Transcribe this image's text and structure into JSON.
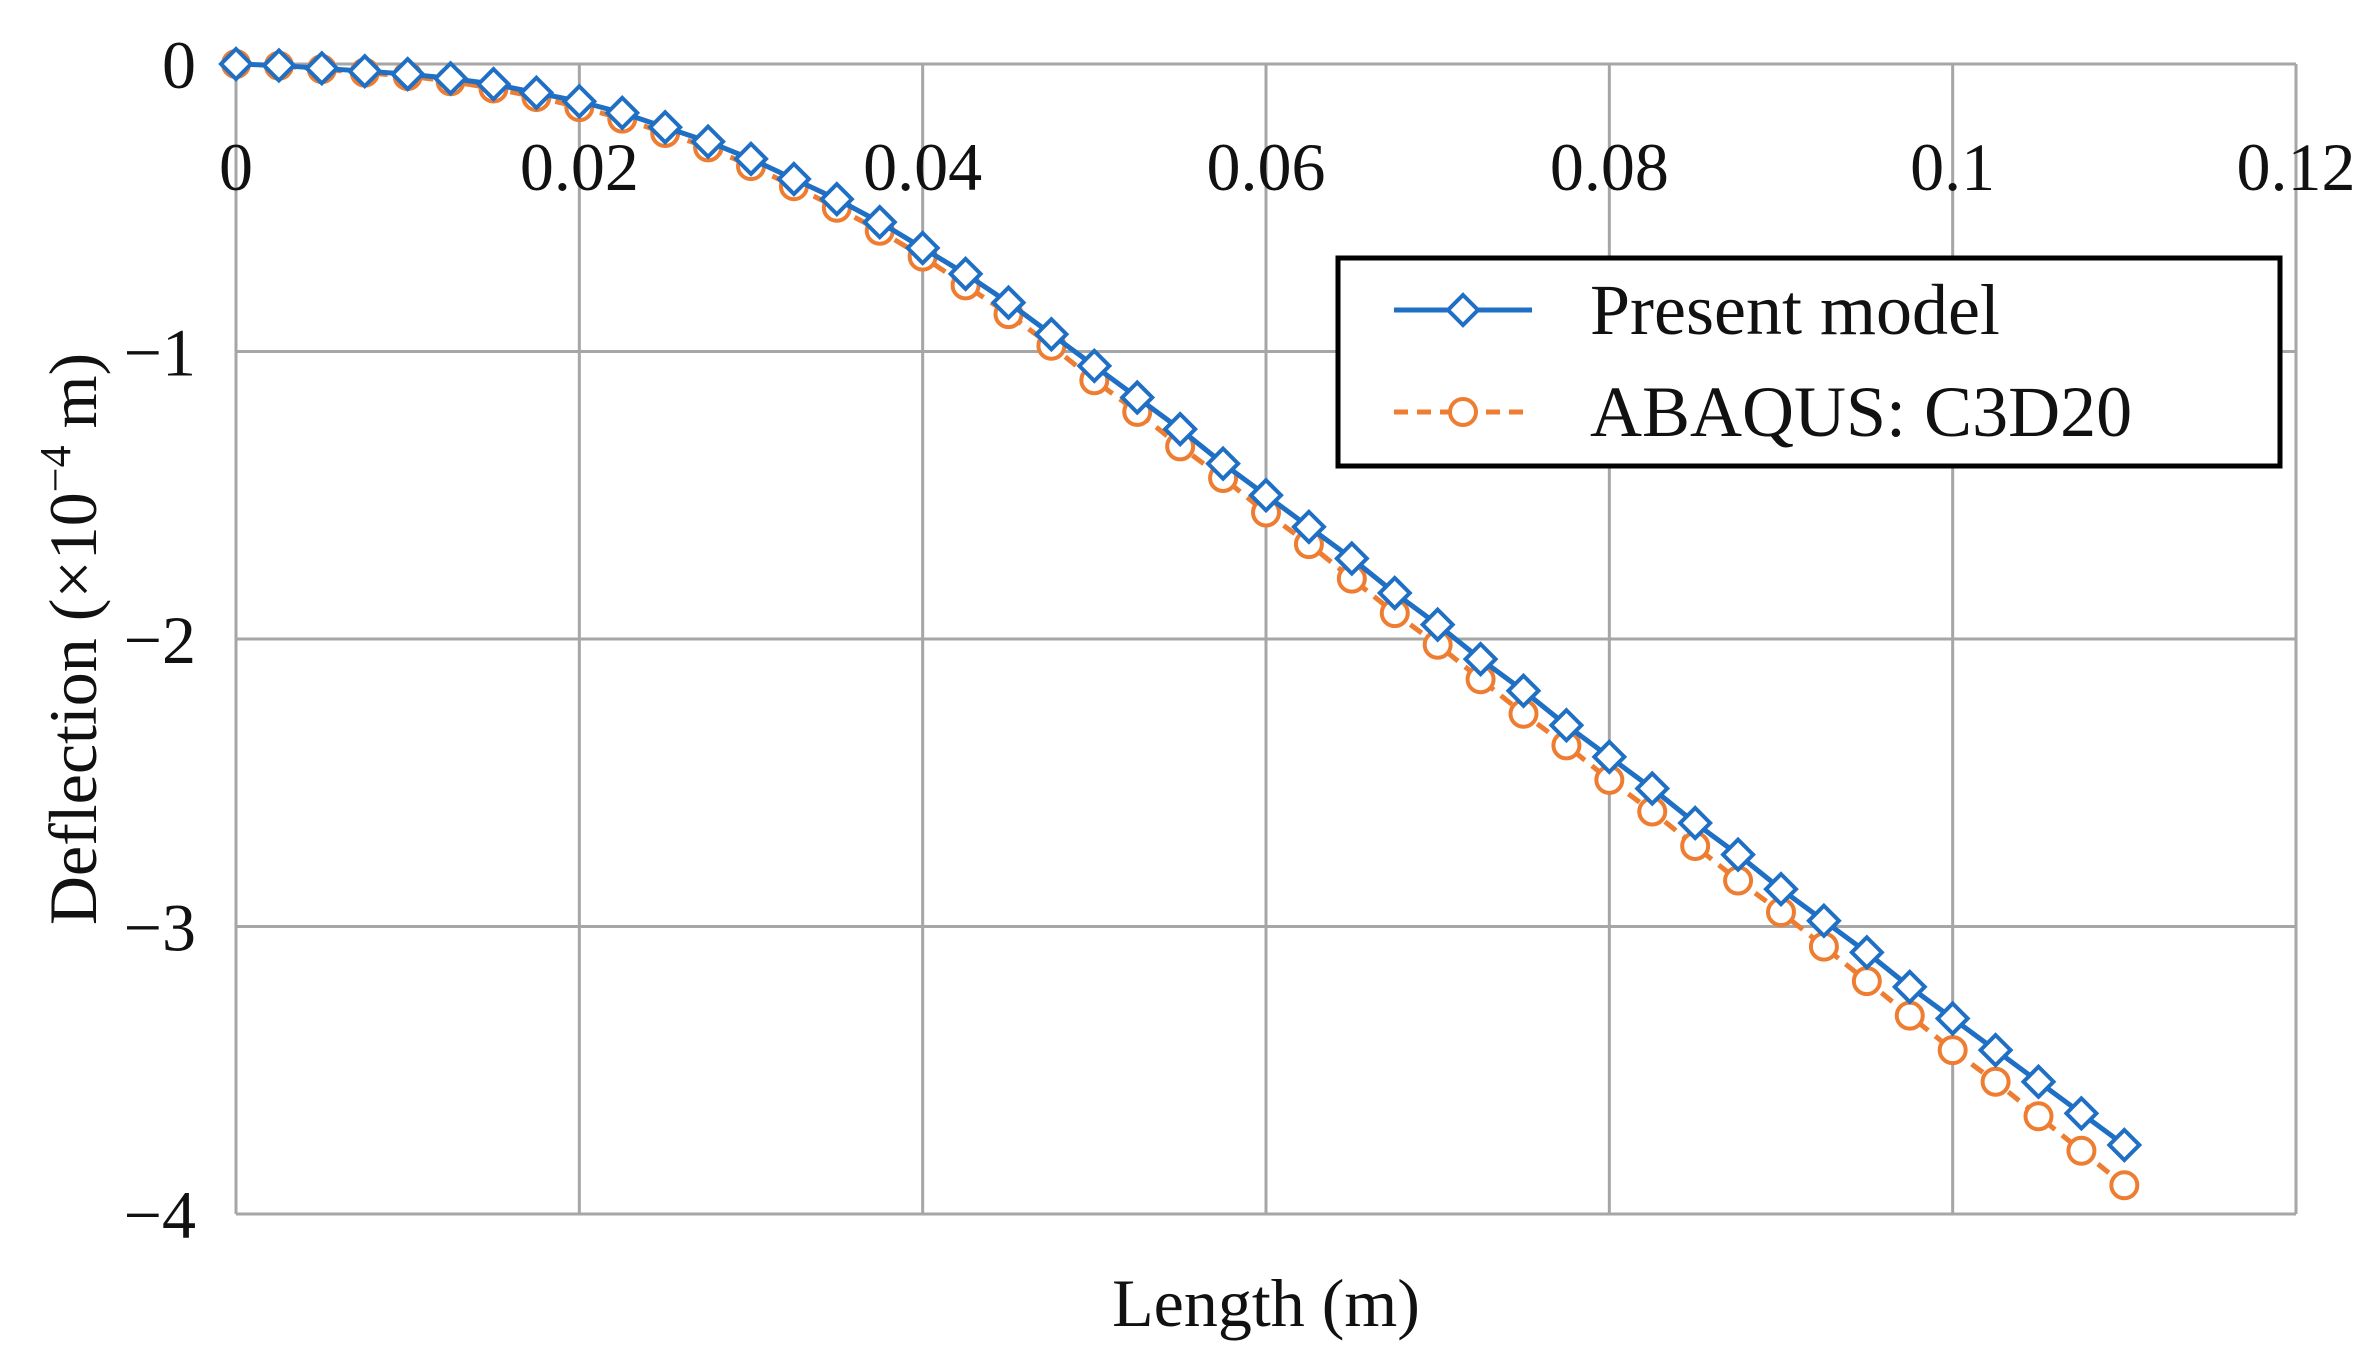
{
  "chart_data": {
    "type": "line",
    "title": "",
    "xlabel": "Length (m)",
    "ylabel_text": "Deflection (×10",
    "ylabel_exponent": "−4",
    "ylabel_unit": " m)",
    "xlim": [
      0,
      0.12
    ],
    "ylim": [
      -4,
      0
    ],
    "x_ticks": [
      0,
      0.02,
      0.04,
      0.06,
      0.08,
      0.1,
      0.12
    ],
    "x_tick_labels": [
      "0",
      "0.02",
      "0.04",
      "0.06",
      "0.08",
      "0.1",
      "0.12"
    ],
    "y_ticks": [
      0,
      -1,
      -2,
      -3,
      -4
    ],
    "y_tick_labels": [
      "0",
      "−1",
      "−2",
      "−3",
      "−4"
    ],
    "grid": true,
    "legend_position": "top-right",
    "x": [
      0,
      0.0025,
      0.005,
      0.0075,
      0.01,
      0.0125,
      0.015,
      0.0175,
      0.02,
      0.0225,
      0.025,
      0.0275,
      0.03,
      0.0325,
      0.035,
      0.0375,
      0.04,
      0.0425,
      0.045,
      0.0475,
      0.05,
      0.0525,
      0.055,
      0.0575,
      0.06,
      0.0625,
      0.065,
      0.0675,
      0.07,
      0.0725,
      0.075,
      0.0775,
      0.08,
      0.0825,
      0.085,
      0.0875,
      0.09,
      0.0925,
      0.095,
      0.0975,
      0.1,
      0.1025,
      0.105,
      0.1075,
      0.11
    ],
    "series": [
      {
        "name": "Present model",
        "color": "#1f6fc5",
        "marker": "diamond",
        "line_style": "solid",
        "values": [
          0,
          -0.005,
          -0.015,
          -0.025,
          -0.035,
          -0.05,
          -0.07,
          -0.1,
          -0.13,
          -0.17,
          -0.22,
          -0.27,
          -0.33,
          -0.4,
          -0.47,
          -0.55,
          -0.64,
          -0.73,
          -0.83,
          -0.94,
          -1.05,
          -1.16,
          -1.27,
          -1.39,
          -1.5,
          -1.61,
          -1.72,
          -1.84,
          -1.95,
          -2.07,
          -2.18,
          -2.3,
          -2.41,
          -2.52,
          -2.64,
          -2.75,
          -2.87,
          -2.98,
          -3.09,
          -3.21,
          -3.32,
          -3.43,
          -3.54,
          -3.65,
          -3.76
        ]
      },
      {
        "name": "ABAQUS: C3D20",
        "color": "#ee7d31",
        "marker": "circle",
        "line_style": "dashed",
        "values": [
          0,
          -0.006,
          -0.018,
          -0.03,
          -0.042,
          -0.06,
          -0.085,
          -0.115,
          -0.15,
          -0.19,
          -0.24,
          -0.29,
          -0.355,
          -0.425,
          -0.5,
          -0.58,
          -0.67,
          -0.77,
          -0.87,
          -0.98,
          -1.1,
          -1.21,
          -1.33,
          -1.44,
          -1.56,
          -1.67,
          -1.79,
          -1.91,
          -2.02,
          -2.14,
          -2.26,
          -2.37,
          -2.49,
          -2.6,
          -2.72,
          -2.84,
          -2.95,
          -3.07,
          -3.19,
          -3.31,
          -3.43,
          -3.54,
          -3.66,
          -3.78,
          -3.9
        ]
      }
    ]
  }
}
